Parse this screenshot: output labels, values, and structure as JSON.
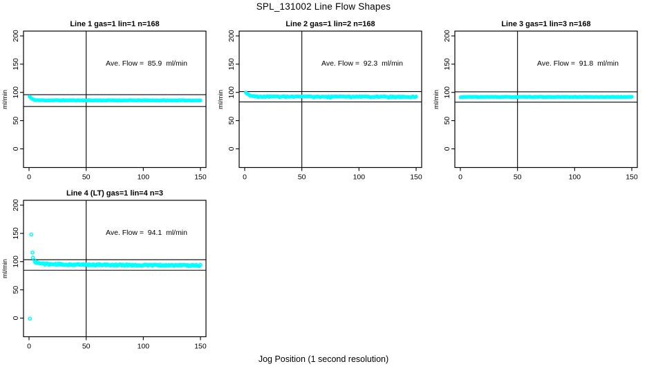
{
  "page": {
    "title": "SPL_131002  Line Flow Shapes",
    "xlabel": "Jog Position (1 second resolution)",
    "background_color": "#ffffff",
    "axis_color": "#000000",
    "point_color": "#00ffff"
  },
  "chart_data": [
    {
      "type": "scatter",
      "title": "Line 1 gas=1 lin=1 n=168",
      "ylabel": "ml/min",
      "annotation": "Ave. Flow =  85.9  ml/min",
      "avg_flow_ml_min": 85.9,
      "n": 168,
      "xlim": [
        0,
        150
      ],
      "ylim": [
        0,
        200
      ],
      "xticks": [
        0,
        50,
        100,
        150
      ],
      "yticks": [
        0,
        50,
        100,
        150,
        200
      ],
      "vline_x": 50,
      "hlines": [
        96.0,
        75.0
      ],
      "marker": "filled-circle",
      "point_color": "#00ffff",
      "series": {
        "seed": 11,
        "n": 168,
        "x_start": 0.5,
        "x_end": 150,
        "profile": [
          [
            0.5,
            92.5
          ],
          [
            2,
            89.5
          ],
          [
            4,
            87.0
          ],
          [
            7,
            86.2
          ],
          [
            12,
            86.0
          ],
          [
            150,
            85.8
          ]
        ],
        "noise": 0.45,
        "dip_prob": 0,
        "dip_amp": 0,
        "outliers": []
      }
    },
    {
      "type": "scatter",
      "title": "Line 2 gas=1 lin=2 n=168",
      "ylabel": "ml/min",
      "annotation": "Ave. Flow =  92.3  ml/min",
      "avg_flow_ml_min": 92.3,
      "n": 168,
      "xlim": [
        0,
        150
      ],
      "ylim": [
        0,
        200
      ],
      "xticks": [
        0,
        50,
        100,
        150
      ],
      "yticks": [
        0,
        50,
        100,
        150,
        200
      ],
      "vline_x": 50,
      "hlines": [
        101.5,
        83.1
      ],
      "marker": "filled-circle",
      "point_color": "#00ffff",
      "series": {
        "seed": 22,
        "n": 168,
        "x_start": 1,
        "x_end": 150,
        "profile": [
          [
            1,
            100
          ],
          [
            2,
            98
          ],
          [
            4,
            95.3
          ],
          [
            7,
            93.6
          ],
          [
            12,
            92.9
          ],
          [
            150,
            92.3
          ]
        ],
        "noise": 0.5,
        "dip_prob": 0.3,
        "dip_amp": 1.6,
        "outliers": []
      }
    },
    {
      "type": "scatter",
      "title": "Line 3 gas=1 lin=3 n=168",
      "ylabel": "ml/min",
      "annotation": "Ave. Flow =  91.8  ml/min",
      "avg_flow_ml_min": 91.8,
      "n": 168,
      "xlim": [
        0,
        150
      ],
      "ylim": [
        0,
        200
      ],
      "xticks": [
        0,
        50,
        100,
        150
      ],
      "yticks": [
        0,
        50,
        100,
        150,
        200
      ],
      "vline_x": 50,
      "hlines": [
        101.0,
        82.6
      ],
      "marker": "filled-circle",
      "point_color": "#00ffff",
      "series": {
        "seed": 33,
        "n": 168,
        "x_start": 0.3,
        "x_end": 150,
        "profile": [
          [
            0.3,
            91.3
          ],
          [
            2,
            92.0
          ],
          [
            150,
            92.0
          ]
        ],
        "noise": 0.35,
        "dip_prob": 0,
        "dip_amp": 0,
        "outliers": []
      }
    },
    {
      "type": "scatter",
      "title": "Line 4 (LT) gas=1 lin=4 n=3",
      "ylabel": "ml/min",
      "annotation": "Ave. Flow =  94.1  ml/min",
      "avg_flow_ml_min": 94.1,
      "n": 3,
      "xlim": [
        0,
        150
      ],
      "ylim": [
        0,
        200
      ],
      "xticks": [
        0,
        50,
        100,
        150
      ],
      "yticks": [
        0,
        50,
        100,
        150,
        200
      ],
      "vline_x": 50,
      "hlines": [
        103.5,
        84.7
      ],
      "marker": "open-circle",
      "point_color": "#00ffff",
      "series": {
        "seed": 44,
        "n": 170,
        "x_start": 4.5,
        "x_end": 150,
        "profile": [
          [
            4.5,
            102
          ],
          [
            5.5,
            99.5
          ],
          [
            8,
            97.5
          ],
          [
            15,
            95.8
          ],
          [
            30,
            94.8
          ],
          [
            80,
            94.0
          ],
          [
            150,
            93.2
          ]
        ],
        "noise": 1.25,
        "dip_prob": 0,
        "dip_amp": 0,
        "outliers": [
          [
            0.8,
            -1
          ],
          [
            2,
            148
          ],
          [
            3,
            116
          ],
          [
            3.4,
            107
          ]
        ]
      }
    }
  ]
}
